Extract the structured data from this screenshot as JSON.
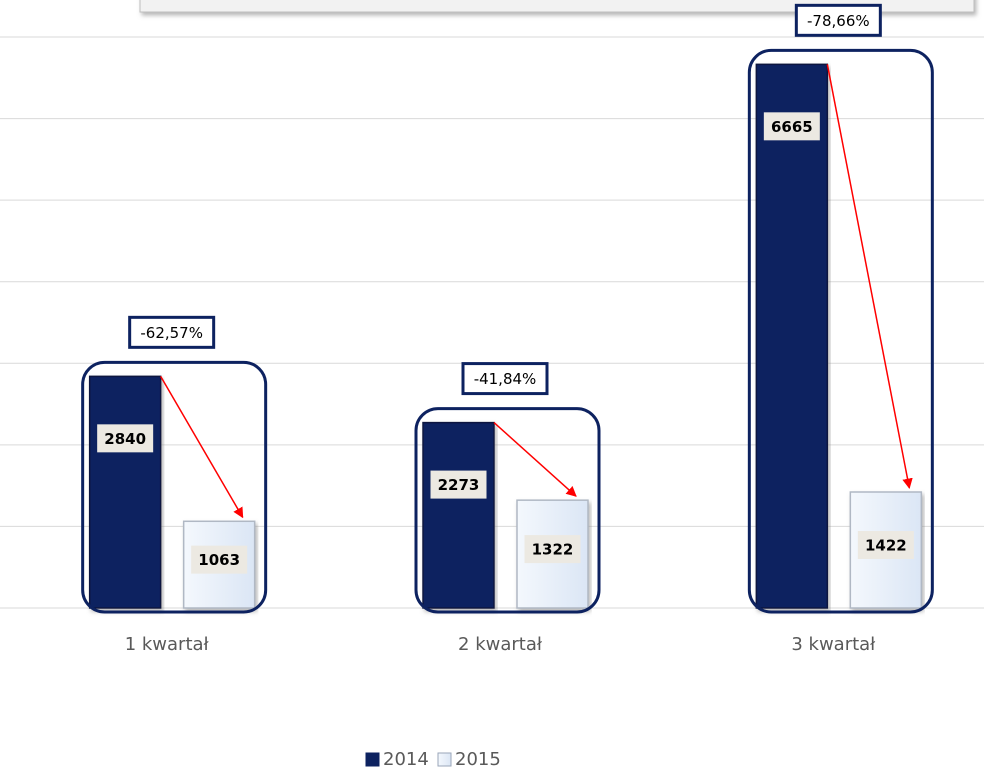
{
  "chart_data": {
    "type": "bar",
    "categories": [
      "1 kwartał",
      "2 kwartał",
      "3 kwartał"
    ],
    "series": [
      {
        "name": "2014",
        "color": "#0d2260",
        "values": [
          2840,
          2273,
          6665
        ]
      },
      {
        "name": "2015",
        "color": "#e6f0fb",
        "values": [
          1063,
          1322,
          1422
        ]
      }
    ],
    "annotations": [
      "-62,57%",
      "-41,84%",
      "-78,66%"
    ],
    "ylim": [
      0,
      7000
    ],
    "yticks": [
      0,
      1000,
      2000,
      3000,
      4000,
      5000,
      6000,
      7000
    ],
    "grid": true
  }
}
